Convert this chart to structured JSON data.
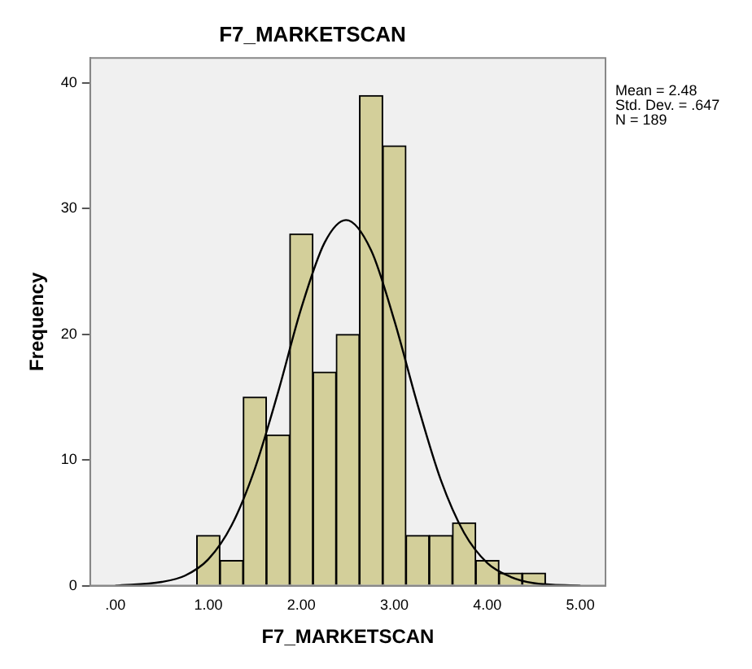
{
  "chart_data": {
    "type": "histogram",
    "title": "F7_MARKETSCAN",
    "xlabel": "F7_MARKETSCAN",
    "ylabel": "Frequency",
    "bins": [
      0.875,
      1.125,
      1.375,
      1.625,
      1.875,
      2.125,
      2.375,
      2.625,
      2.875,
      3.125,
      3.375,
      3.625,
      3.875,
      4.125,
      4.375,
      4.625
    ],
    "values": [
      4,
      2,
      15,
      12,
      28,
      17,
      20,
      39,
      35,
      4,
      4,
      5,
      2,
      1,
      1
    ],
    "color": "#d3cf9a",
    "series": [
      {
        "type": "line",
        "color": "#000000",
        "x": [
          0,
          0.5,
          0.75,
          1,
          1.25,
          1.5,
          1.75,
          2,
          2.25,
          2.48,
          2.75,
          3,
          3.25,
          3.5,
          3.75,
          4,
          4.25,
          4.5,
          5
        ],
        "values": [
          0,
          0.3,
          0.8,
          2.1,
          4.8,
          9.3,
          15.4,
          22.1,
          27.3,
          29.1,
          26.7,
          21.1,
          14.4,
          8.4,
          4.2,
          1.8,
          0.7,
          0.2,
          0
        ]
      }
    ],
    "annotations": [
      "Mean = 2.48",
      "Std. Dev. = .647",
      "N = 189"
    ],
    "xlim": [
      -0.27,
      5.27
    ],
    "ylim": [
      0,
      42
    ],
    "xticks": [
      {
        "value": 0,
        "label": ".00"
      },
      {
        "value": 1,
        "label": "1.00"
      },
      {
        "value": 2,
        "label": "2.00"
      },
      {
        "value": 3,
        "label": "3.00"
      },
      {
        "value": 4,
        "label": "4.00"
      },
      {
        "value": 5,
        "label": "5.00"
      }
    ],
    "yticks": [
      0,
      10,
      20,
      30,
      40
    ],
    "grid": false,
    "legend": false,
    "marker": "none"
  }
}
